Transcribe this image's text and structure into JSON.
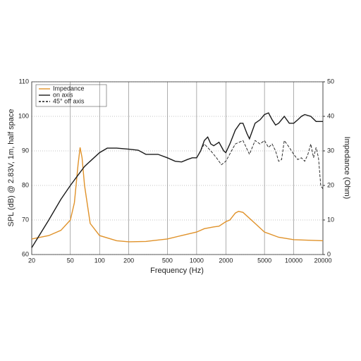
{
  "chart_data": {
    "type": "line",
    "xlabel": "Frequency (Hz)",
    "ylabel": "SPL (dB) @ 2.83V, 1m, half space",
    "y2label": "Impedance (Ohm)",
    "xscale": "log",
    "xlim": [
      20,
      20000
    ],
    "xticks": [
      20,
      50,
      100,
      200,
      500,
      1000,
      2000,
      5000,
      10000,
      20000
    ],
    "ylim": [
      60,
      110
    ],
    "yticks": [
      60,
      70,
      80,
      90,
      100,
      110
    ],
    "y2lim": [
      0,
      50
    ],
    "y2ticks": [
      0,
      10,
      20,
      30,
      40,
      50
    ],
    "grid": true,
    "legend": "upper left",
    "series": [
      {
        "name": "Impedance",
        "color": "#e0922a",
        "dash": false,
        "axis": "y2",
        "x": [
          20,
          30,
          40,
          50,
          55,
          60,
          63,
          66,
          70,
          80,
          100,
          150,
          200,
          300,
          400,
          500,
          700,
          1000,
          1200,
          1500,
          1700,
          2000,
          2200,
          2500,
          2700,
          3000,
          4000,
          5000,
          7000,
          10000,
          20000
        ],
        "values": [
          4.5,
          5.5,
          7,
          10,
          15,
          26,
          31,
          28,
          20,
          9,
          5.5,
          4,
          3.7,
          3.8,
          4.2,
          4.5,
          5.5,
          6.5,
          7.5,
          8,
          8.2,
          9.5,
          10,
          12,
          12.5,
          12.2,
          9,
          6.5,
          5,
          4.3,
          4
        ]
      },
      {
        "name": "on axis",
        "color": "#1a1a1a",
        "dash": false,
        "x": [
          20,
          30,
          40,
          50,
          60,
          70,
          80,
          100,
          120,
          150,
          200,
          250,
          300,
          400,
          500,
          600,
          700,
          800,
          900,
          1000,
          1100,
          1200,
          1300,
          1400,
          1500,
          1700,
          1900,
          2000,
          2200,
          2500,
          2800,
          3000,
          3300,
          3500,
          4000,
          4500,
          5000,
          5500,
          6000,
          6500,
          7000,
          8000,
          9000,
          10000,
          11000,
          12000,
          13000,
          15000,
          17000,
          20000
        ],
        "values": [
          62,
          70,
          76,
          80,
          83,
          85.5,
          87,
          89.5,
          90.8,
          90.8,
          90.5,
          90.2,
          89,
          89,
          88,
          87,
          86.8,
          87.5,
          88,
          88,
          90,
          93,
          94,
          92,
          91.5,
          92.5,
          90,
          89.5,
          92,
          96,
          98,
          98,
          95,
          93.5,
          98,
          99,
          100.5,
          101,
          99,
          97.5,
          98,
          100,
          98,
          98,
          99,
          100,
          100.5,
          100,
          98.5,
          98.5
        ]
      },
      {
        "name": "45° off axis",
        "color": "#1a1a1a",
        "dash": true,
        "x": [
          1000,
          1200,
          1400,
          1600,
          1800,
          2000,
          2500,
          3000,
          3500,
          4000,
          4500,
          5000,
          5500,
          6000,
          6500,
          7000,
          7500,
          8000,
          9000,
          10000,
          11000,
          12000,
          13000,
          14000,
          15000,
          16000,
          17000,
          18000,
          19000,
          20000
        ],
        "values": [
          88,
          92,
          90,
          88,
          86,
          87,
          92,
          93,
          89,
          93,
          92,
          93,
          91,
          92,
          90,
          87,
          87.5,
          93,
          91,
          89,
          87.5,
          88,
          87,
          89,
          92,
          88,
          91,
          88,
          80,
          79
        ]
      }
    ]
  }
}
